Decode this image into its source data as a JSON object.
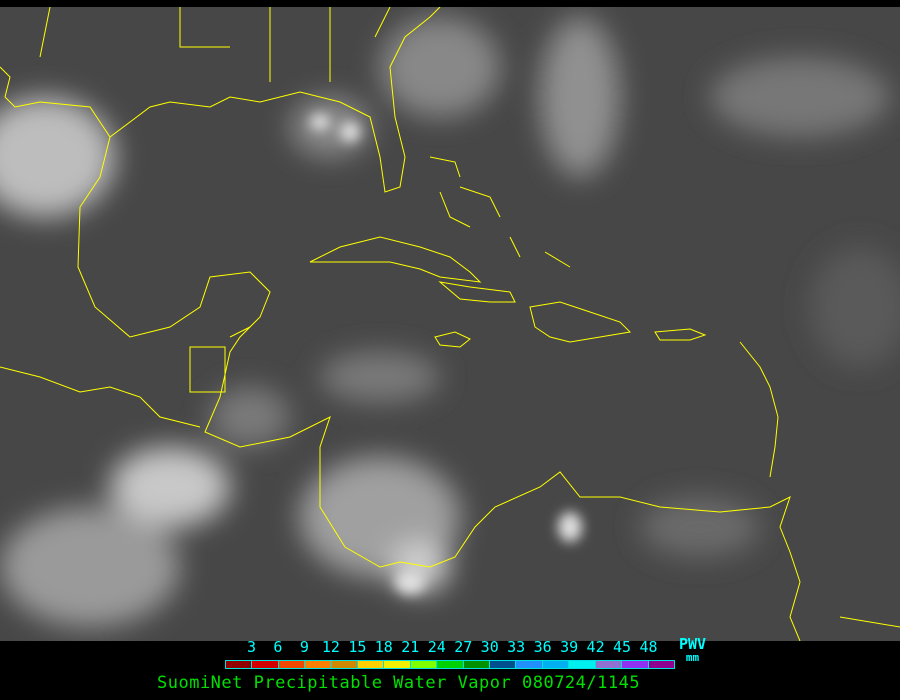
{
  "legend": {
    "ticks": [
      "3",
      "6",
      "9",
      "12",
      "15",
      "18",
      "21",
      "24",
      "27",
      "30",
      "33",
      "36",
      "39",
      "42",
      "45",
      "48"
    ],
    "colors": [
      "#900000",
      "#d00000",
      "#f04800",
      "#ff8000",
      "#d08800",
      "#ffd000",
      "#f0f000",
      "#80ff00",
      "#00d000",
      "#009000",
      "#005090",
      "#2090ff",
      "#00b0f0",
      "#00f0f0",
      "#9070d0",
      "#9030f0",
      "#900090"
    ],
    "variable": "PWV",
    "unit": "mm"
  },
  "title": "SuomiNet Precipitable Water Vapor 080724/1145",
  "map": {
    "coastline_color": "#ffff00",
    "background": "#4a4a4a"
  }
}
